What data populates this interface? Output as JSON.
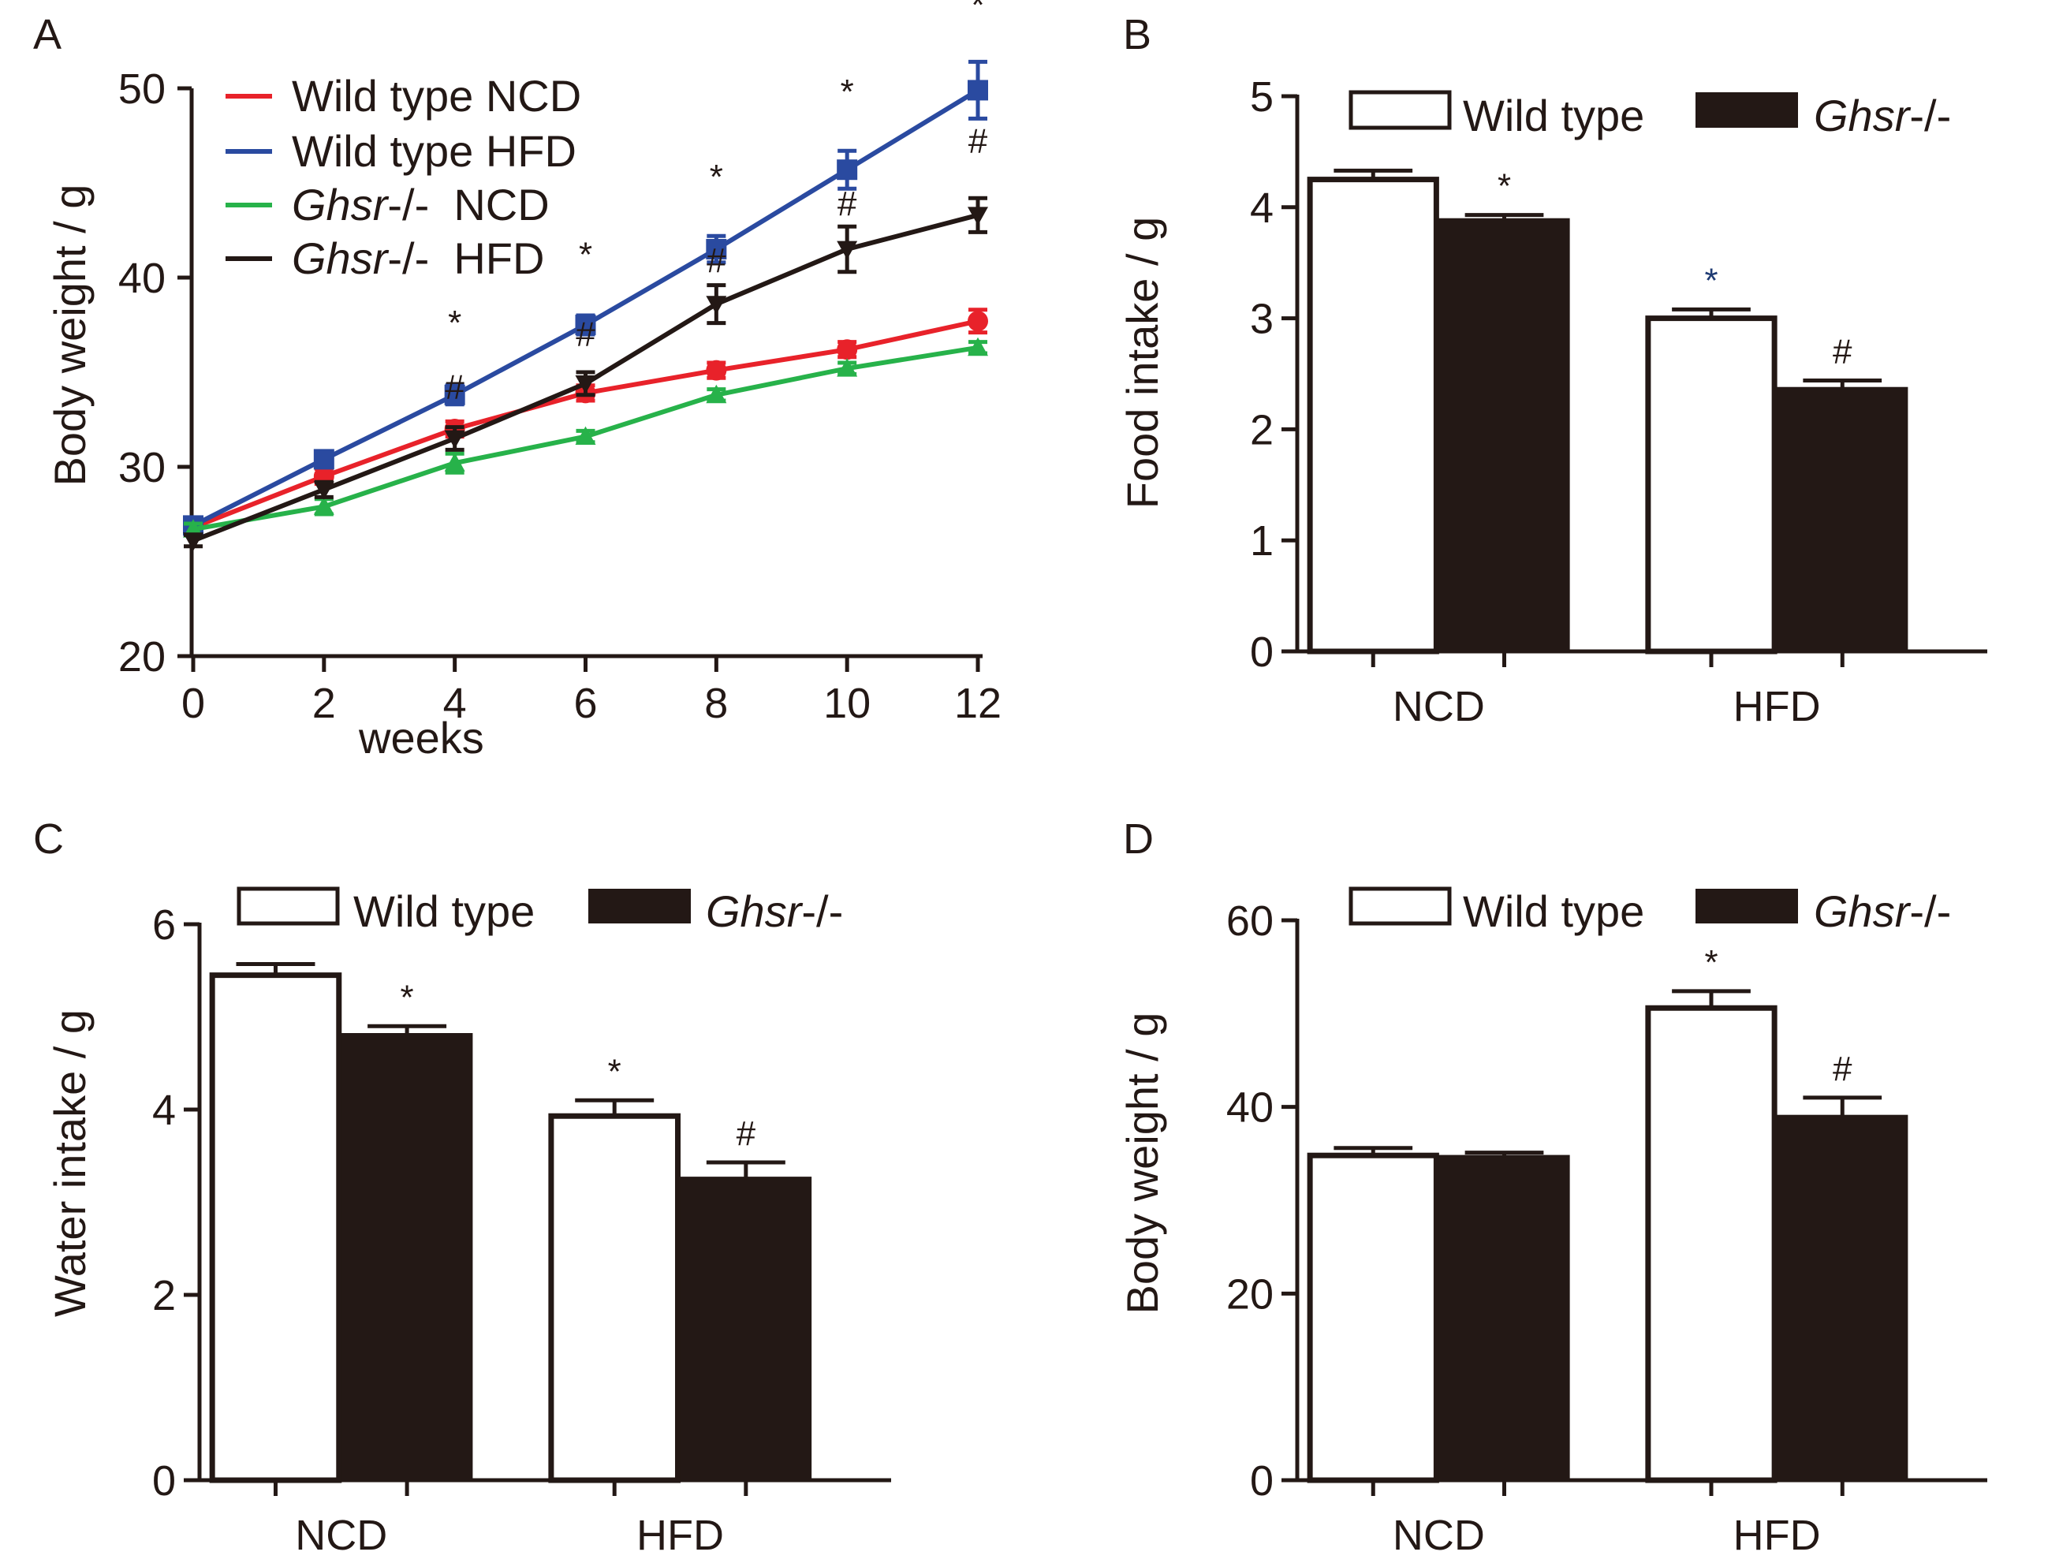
{
  "colors": {
    "ink": "#231815",
    "dark_bar": "#231815",
    "light_bar": "#ffffff",
    "red": "#e8222a",
    "blue": "#2a4aa0",
    "green": "#27b24a",
    "black_line": "#231815",
    "star_blue": "#1f3b73"
  },
  "chart_data": [
    {
      "panel": "A",
      "type": "line",
      "title": "",
      "xlabel": "weeks",
      "ylabel": "Body weight / g",
      "xlim": [
        0,
        12
      ],
      "ylim": [
        20,
        50
      ],
      "x": [
        0,
        2,
        4,
        6,
        8,
        10,
        12
      ],
      "xticks": [
        "0",
        "2",
        "4",
        "6",
        "8",
        "10",
        "12"
      ],
      "yticks": [
        "20",
        "30",
        "40",
        "50"
      ],
      "legend": {
        "position": "top-left",
        "entries": [
          {
            "label": "Wild type NCD",
            "italic": "",
            "rest": ""
          },
          {
            "label": "Wild type HFD",
            "italic": "",
            "rest": ""
          },
          {
            "label": "",
            "italic": "Ghsr",
            "rest": "-/-  NCD"
          },
          {
            "label": "",
            "italic": "Ghsr",
            "rest": "-/-  HFD"
          }
        ]
      },
      "series": [
        {
          "name": "Wild type NCD",
          "color": "#e8222a",
          "marker": "circle",
          "values": [
            26.8,
            29.5,
            32.0,
            33.9,
            35.1,
            36.2,
            37.7
          ],
          "errors": [
            0.3,
            0.4,
            0.4,
            0.4,
            0.4,
            0.4,
            0.6
          ]
        },
        {
          "name": "Wild type HFD",
          "color": "#2a4aa0",
          "marker": "square",
          "values": [
            26.9,
            30.4,
            33.8,
            37.5,
            41.5,
            45.7,
            49.9
          ],
          "errors": [
            0.4,
            0.4,
            0.5,
            0.5,
            0.7,
            1.0,
            1.5
          ]
        },
        {
          "name": "Ghsr-/- NCD",
          "color": "#27b24a",
          "marker": "triangle-up",
          "values": [
            26.7,
            27.9,
            30.2,
            31.6,
            33.8,
            35.2,
            36.3
          ],
          "errors": [
            0.3,
            0.4,
            0.5,
            0.3,
            0.3,
            0.3,
            0.3
          ]
        },
        {
          "name": "Ghsr-/- HFD",
          "color": "#231815",
          "marker": "triangle-down",
          "values": [
            26.1,
            28.8,
            31.5,
            34.4,
            38.6,
            41.5,
            43.3
          ],
          "errors": [
            0.3,
            0.4,
            0.6,
            0.6,
            1.0,
            1.2,
            0.9
          ]
        }
      ],
      "annotations": [
        {
          "x": 4,
          "text": "*",
          "y": 37.0
        },
        {
          "x": 6,
          "text": "*",
          "y": 40.6
        },
        {
          "x": 8,
          "text": "*",
          "y": 44.7
        },
        {
          "x": 10,
          "text": "*",
          "y": 49.2
        },
        {
          "x": 12,
          "text": "*",
          "y": 53.8
        },
        {
          "x": 4,
          "text": "#",
          "y": 33.6
        },
        {
          "x": 6,
          "text": "#",
          "y": 36.4
        },
        {
          "x": 8,
          "text": "#",
          "y": 40.3
        },
        {
          "x": 10,
          "text": "#",
          "y": 43.3
        },
        {
          "x": 12,
          "text": "#",
          "y": 46.6
        }
      ]
    },
    {
      "panel": "B",
      "type": "bar",
      "title": "",
      "xlabel": "",
      "ylabel": "Food intake / g",
      "ylim": [
        0,
        5
      ],
      "categories": [
        "NCD",
        "HFD"
      ],
      "yticks": [
        "0",
        "1",
        "2",
        "3",
        "4",
        "5"
      ],
      "legend": {
        "position": "top",
        "wt_label": "Wild type",
        "ko_italic": "Ghsr",
        "ko_rest": "-/-"
      },
      "series": [
        {
          "name": "Wild type",
          "values": [
            4.25,
            3.0
          ],
          "errors": [
            0.08,
            0.08
          ],
          "marks": [
            "",
            "*"
          ],
          "mark_colors": [
            "",
            "#1f3b73"
          ]
        },
        {
          "name": "Ghsr-/-",
          "values": [
            3.88,
            2.36
          ],
          "errors": [
            0.05,
            0.08
          ],
          "marks": [
            "*",
            "#"
          ],
          "mark_colors": [
            "#231815",
            "#231815"
          ]
        }
      ]
    },
    {
      "panel": "C",
      "type": "bar",
      "title": "",
      "xlabel": "",
      "ylabel": "Water intake / g",
      "ylim": [
        0,
        6
      ],
      "categories": [
        "NCD",
        "HFD"
      ],
      "yticks": [
        "0",
        "2",
        "4",
        "6"
      ],
      "legend": {
        "position": "top",
        "wt_label": "Wild type",
        "ko_italic": "Ghsr",
        "ko_rest": "-/-"
      },
      "series": [
        {
          "name": "Wild type",
          "values": [
            5.45,
            3.93
          ],
          "errors": [
            0.12,
            0.17
          ],
          "marks": [
            "",
            "*"
          ],
          "mark_colors": [
            "",
            "#231815"
          ]
        },
        {
          "name": "Ghsr-/-",
          "values": [
            4.8,
            3.25
          ],
          "errors": [
            0.1,
            0.18
          ],
          "marks": [
            "*",
            "#"
          ],
          "mark_colors": [
            "#231815",
            "#231815"
          ]
        }
      ]
    },
    {
      "panel": "D",
      "type": "bar",
      "title": "",
      "xlabel": "",
      "ylabel": "Body weight / g",
      "ylim": [
        0,
        60
      ],
      "categories": [
        "NCD",
        "HFD"
      ],
      "yticks": [
        "0",
        "20",
        "40",
        "60"
      ],
      "legend": {
        "position": "top",
        "wt_label": "Wild type",
        "ko_italic": "Ghsr",
        "ko_rest": "-/-"
      },
      "series": [
        {
          "name": "Wild type",
          "values": [
            34.8,
            50.6
          ],
          "errors": [
            0.8,
            1.8
          ],
          "marks": [
            "",
            "*"
          ],
          "mark_colors": [
            "",
            "#231815"
          ]
        },
        {
          "name": "Ghsr-/-",
          "values": [
            34.6,
            38.9
          ],
          "errors": [
            0.5,
            2.1
          ],
          "marks": [
            "",
            "#"
          ],
          "mark_colors": [
            "",
            "#231815"
          ]
        }
      ]
    }
  ]
}
